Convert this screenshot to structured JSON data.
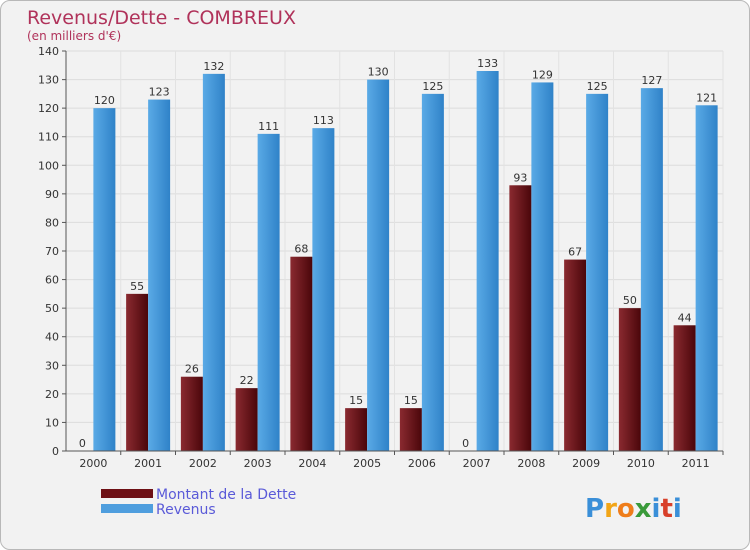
{
  "chart_data": {
    "type": "bar",
    "title": "Revenus/Dette - COMBREUX",
    "subtitle": "(en milliers d'€)",
    "categories": [
      "2000",
      "2001",
      "2002",
      "2003",
      "2004",
      "2005",
      "2006",
      "2007",
      "2008",
      "2009",
      "2010",
      "2011"
    ],
    "series": [
      {
        "name": "Montant de la Dette",
        "color": "#6e1015",
        "values": [
          0,
          55,
          26,
          22,
          68,
          15,
          15,
          0,
          93,
          67,
          50,
          44
        ]
      },
      {
        "name": "Revenus",
        "color": "#4f9ede",
        "values": [
          120,
          123,
          132,
          111,
          113,
          130,
          125,
          133,
          129,
          125,
          127,
          121
        ]
      }
    ],
    "y_ticks": [
      0,
      10,
      20,
      30,
      40,
      50,
      60,
      70,
      80,
      90,
      100,
      110,
      120,
      130,
      140
    ],
    "ylim": [
      0,
      140
    ],
    "grid": true,
    "legend": "bottom-left"
  },
  "branding": {
    "logo_letters": [
      "P",
      "r",
      "o",
      "x",
      "i",
      "t",
      "i"
    ],
    "logo_colors": [
      "#3a8fd8",
      "#f2a516",
      "#ef7d1a",
      "#3a9a3a",
      "#3a8fd8",
      "#d8402a",
      "#3a8fd8"
    ]
  }
}
